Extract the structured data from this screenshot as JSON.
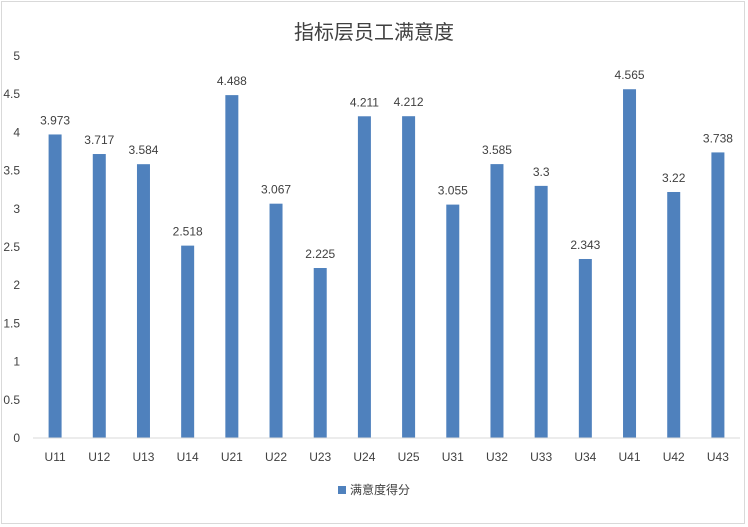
{
  "chart_data": {
    "type": "bar",
    "title": "指标层员工满意度",
    "categories": [
      "U11",
      "U12",
      "U13",
      "U14",
      "U21",
      "U22",
      "U23",
      "U24",
      "U25",
      "U31",
      "U32",
      "U33",
      "U34",
      "U41",
      "U42",
      "U43"
    ],
    "series": [
      {
        "name": "满意度得分",
        "values": [
          3.973,
          3.717,
          3.584,
          2.518,
          4.488,
          3.067,
          2.225,
          4.211,
          4.212,
          3.055,
          3.585,
          3.3,
          2.343,
          4.565,
          3.22,
          3.738
        ]
      }
    ],
    "data_labels": [
      "3.973",
      "3.717",
      "3.584",
      "2.518",
      "4.488",
      "3.067",
      "2.225",
      "4.211",
      "4.212",
      "3.055",
      "3.585",
      "3.3",
      "2.343",
      "4.565",
      "3.22",
      "3.738"
    ],
    "y_ticks": [
      "0",
      "0.5",
      "1",
      "1.5",
      "2",
      "2.5",
      "3",
      "3.5",
      "4",
      "4.5",
      "5"
    ],
    "ylim": [
      0,
      5
    ],
    "grid": false,
    "legend_position": "bottom",
    "colors": {
      "bar": "#4f81bd",
      "axis": "#d9d9d9",
      "text": "#404040"
    }
  }
}
